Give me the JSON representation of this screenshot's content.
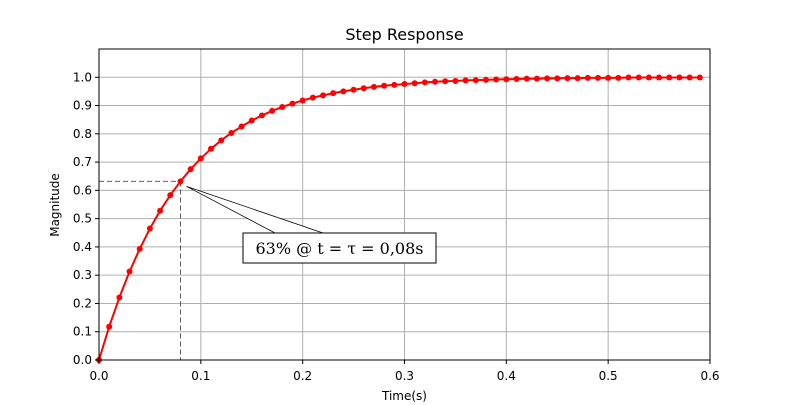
{
  "chart_data": {
    "type": "line",
    "title": "Step Response",
    "xlabel": "Time(s)",
    "ylabel": "Magnitude",
    "xlim": [
      0.0,
      0.6
    ],
    "ylim": [
      0.0,
      1.1
    ],
    "xticks": [
      0.0,
      0.1,
      0.2,
      0.3,
      0.4,
      0.5,
      0.6
    ],
    "xtick_labels": [
      "0.0",
      "0.1",
      "0.2",
      "0.3",
      "0.4",
      "0.5",
      "0.6"
    ],
    "yticks": [
      0.0,
      0.1,
      0.2,
      0.3,
      0.4,
      0.5,
      0.6,
      0.7,
      0.8,
      0.9,
      1.0
    ],
    "ytick_labels": [
      "0.0",
      "0.1",
      "0.2",
      "0.3",
      "0.4",
      "0.5",
      "0.6",
      "0.7",
      "0.8",
      "0.9",
      "1.0"
    ],
    "grid": true,
    "series": [
      {
        "color": "#ff0000",
        "marker": "circle",
        "x": [
          0.0,
          0.01,
          0.02,
          0.03,
          0.04,
          0.05,
          0.06,
          0.07,
          0.08,
          0.09,
          0.1,
          0.11,
          0.12,
          0.13,
          0.14,
          0.15,
          0.16,
          0.17,
          0.18,
          0.19,
          0.2,
          0.21,
          0.22,
          0.23,
          0.24,
          0.25,
          0.26,
          0.27,
          0.28,
          0.29,
          0.3,
          0.31,
          0.32,
          0.33,
          0.34,
          0.35,
          0.36,
          0.37,
          0.38,
          0.39,
          0.4,
          0.41,
          0.42,
          0.43,
          0.44,
          0.45,
          0.46,
          0.47,
          0.48,
          0.49,
          0.5,
          0.51,
          0.52,
          0.53,
          0.54,
          0.55,
          0.56,
          0.57,
          0.58,
          0.59
        ],
        "y": [
          0.0,
          0.118,
          0.221,
          0.313,
          0.393,
          0.465,
          0.528,
          0.583,
          0.632,
          0.675,
          0.713,
          0.747,
          0.777,
          0.803,
          0.826,
          0.847,
          0.865,
          0.881,
          0.895,
          0.907,
          0.918,
          0.928,
          0.936,
          0.944,
          0.95,
          0.956,
          0.961,
          0.966,
          0.97,
          0.973,
          0.976,
          0.979,
          0.982,
          0.984,
          0.986,
          0.987,
          0.989,
          0.99,
          0.991,
          0.992,
          0.993,
          0.994,
          0.995,
          0.995,
          0.996,
          0.996,
          0.997,
          0.997,
          0.998,
          0.998,
          0.998,
          0.998,
          0.999,
          0.999,
          0.999,
          0.999,
          0.999,
          0.999,
          0.999,
          0.999
        ]
      }
    ],
    "annotation": {
      "text": "63% @ t = τ = 0,08s",
      "point": [
        0.08,
        0.632
      ]
    }
  }
}
